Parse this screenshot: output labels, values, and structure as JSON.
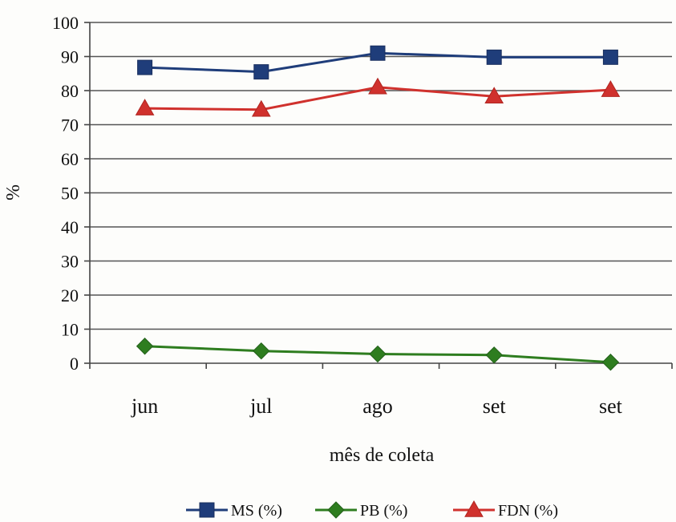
{
  "chart_data": {
    "type": "line",
    "title": "",
    "xlabel": "mês de coleta",
    "ylabel": "%",
    "ylim": [
      0,
      100
    ],
    "ytick_step": 10,
    "grid": true,
    "legend_position": "bottom",
    "categories": [
      "jun",
      "jul",
      "ago",
      "set",
      "set"
    ],
    "series": [
      {
        "name": "MS (%)",
        "color": "#1f3d7a",
        "marker": "square",
        "values": [
          86.8,
          85.5,
          91.0,
          89.8,
          89.8
        ]
      },
      {
        "name": "PB (%)",
        "color": "#2e7d1f",
        "marker": "diamond",
        "values": [
          5.0,
          3.6,
          2.7,
          2.4,
          0.3
        ]
      },
      {
        "name": "FDN (%)",
        "color": "#d0312d",
        "marker": "triangle",
        "values": [
          74.8,
          74.4,
          81.0,
          78.3,
          80.2
        ]
      }
    ]
  }
}
